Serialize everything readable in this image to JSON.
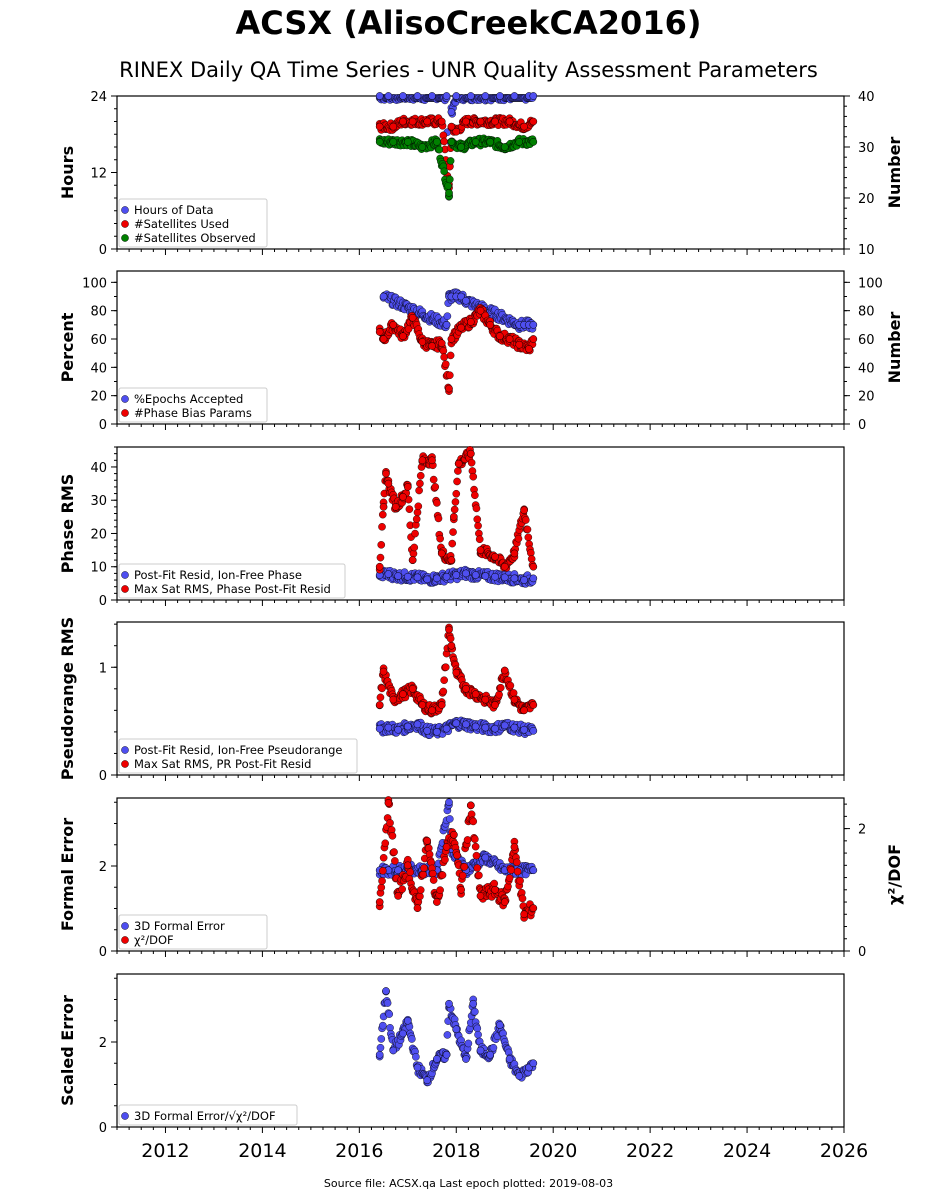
{
  "title": "ACSX (AlisoCreekCA2016)",
  "subtitle": "RINEX Daily QA Time Series - UNR Quality Assessment Parameters",
  "footer": "Source file: ACSX.qa Last epoch plotted: 2019-08-03",
  "colors": {
    "blue": "#4f4ff0",
    "red": "#ee0000",
    "green": "#008000",
    "darkred": "#5a0000",
    "edge": "#000000"
  },
  "chart_data": [
    {
      "type": "scatter",
      "ylabel": "Hours",
      "ylim": [
        0,
        24
      ],
      "yticks": [
        "0",
        "12",
        "24"
      ],
      "ylabel_right": "Number",
      "ylim_right": [
        10,
        40
      ],
      "yticks_right": [
        "10",
        "20",
        "30",
        "40"
      ],
      "xlim": [
        2011.0,
        2026.0
      ],
      "xticks": [
        "2012",
        "2014",
        "2016",
        "2018",
        "2020",
        "2022",
        "2024",
        "2026"
      ],
      "legend_position": "lower-left",
      "series": [
        {
          "name": "Hours of Data",
          "color": "#4f4ff0",
          "axis": "left",
          "x": [
            2016.42,
            2016.6,
            2016.9,
            2017.2,
            2017.5,
            2017.8,
            2017.85,
            2017.9,
            2018.0,
            2018.3,
            2018.6,
            2018.9,
            2019.2,
            2019.5,
            2019.59
          ],
          "y": [
            24,
            24,
            24,
            24,
            24,
            24,
            8.2,
            21.5,
            24,
            24,
            24,
            24,
            24,
            24,
            24
          ]
        },
        {
          "name": "#Satellites Used",
          "color": "#ee0000",
          "axis": "right",
          "x": [
            2016.42,
            2016.7,
            2016.9,
            2017.1,
            2017.4,
            2017.7,
            2017.85,
            2017.9,
            2018.0,
            2018.2,
            2018.5,
            2018.8,
            2019.1,
            2019.4,
            2019.59
          ],
          "y": [
            34,
            34,
            35,
            35,
            35,
            35,
            22,
            34,
            33,
            35,
            35,
            35,
            35,
            34,
            35
          ]
        },
        {
          "name": "#Satellites Observed",
          "color": "#008000",
          "axis": "right",
          "x": [
            2016.42,
            2016.7,
            2017.0,
            2017.3,
            2017.6,
            2017.85,
            2017.9,
            2018.1,
            2018.4,
            2018.7,
            2019.0,
            2019.3,
            2019.59
          ],
          "y": [
            31,
            31,
            31,
            30,
            31,
            21,
            31,
            30,
            31,
            31,
            30,
            31,
            31
          ]
        }
      ]
    },
    {
      "type": "scatter",
      "ylabel": "Percent",
      "ylim": [
        0,
        108
      ],
      "yticks": [
        "0",
        "20",
        "40",
        "60",
        "80",
        "100"
      ],
      "ylabel_right": "Number",
      "ylim_right": [
        0,
        108
      ],
      "yticks_right": [
        "0",
        "20",
        "40",
        "60",
        "80",
        "100"
      ],
      "legend_position": "lower-left",
      "series": [
        {
          "name": "%Epochs Accepted",
          "color": "#4f4ff0",
          "axis": "left",
          "x": [
            2016.5,
            2017.8,
            2017.85,
            2017.9,
            2018.0,
            2018.1,
            2018.2,
            2019.3,
            2019.4,
            2019.5,
            2019.59
          ],
          "y": [
            90,
            70,
            90,
            90,
            90,
            90,
            87,
            70,
            70,
            70,
            70
          ]
        },
        {
          "name": "#Phase Bias Params",
          "color": "#ee0000",
          "axis": "right",
          "x": [
            2016.42,
            2016.5,
            2016.7,
            2016.9,
            2017.1,
            2017.3,
            2017.5,
            2017.7,
            2017.85,
            2017.9,
            2018.1,
            2018.3,
            2018.5,
            2018.7,
            2018.9,
            2019.1,
            2019.3,
            2019.5,
            2019.59
          ],
          "y": [
            65,
            60,
            70,
            62,
            75,
            58,
            55,
            57,
            25,
            60,
            68,
            72,
            80,
            70,
            62,
            60,
            56,
            53,
            60
          ]
        }
      ]
    },
    {
      "type": "scatter",
      "ylabel": "Phase RMS",
      "ylim": [
        0,
        46
      ],
      "yticks": [
        "0",
        "10",
        "20",
        "30",
        "40"
      ],
      "legend_position": "lower-left",
      "series": [
        {
          "name": "Post-Fit Resid, Ion-Free Phase",
          "color": "#4f4ff0",
          "x": [
            2016.42,
            2016.6,
            2016.8,
            2017.0,
            2017.2,
            2017.4,
            2017.6,
            2017.8,
            2018.0,
            2018.2,
            2018.4,
            2018.6,
            2018.8,
            2019.0,
            2019.2,
            2019.4,
            2019.59
          ],
          "y": [
            7.5,
            7.8,
            7.2,
            7.0,
            6.8,
            6.2,
            6.5,
            7.0,
            7.5,
            8.0,
            7.5,
            7.2,
            7.0,
            6.8,
            6.5,
            6.0,
            6.5
          ]
        },
        {
          "name": "Max Sat RMS, Phase Post-Fit Resid",
          "color": "#ee0000",
          "x": [
            2016.42,
            2016.5,
            2016.55,
            2016.6,
            2016.75,
            2016.9,
            2017.0,
            2017.1,
            2017.3,
            2017.5,
            2017.7,
            2017.9,
            2017.95,
            2018.05,
            2018.3,
            2018.5,
            2018.8,
            2019.0,
            2019.2,
            2019.4,
            2019.59
          ],
          "y": [
            10,
            28,
            38,
            35,
            28,
            31,
            34,
            12,
            42,
            42,
            14,
            12,
            25,
            41,
            44,
            15,
            13,
            10,
            14,
            27,
            10
          ]
        }
      ]
    },
    {
      "type": "scatter",
      "ylabel": "Pseudorange RMS",
      "ylim": [
        0,
        1.42
      ],
      "yticks": [
        "0",
        "1"
      ],
      "legend_position": "lower-left",
      "series": [
        {
          "name": "Post-Fit Resid, Ion-Free Pseudorange",
          "color": "#4f4ff0",
          "x": [
            2016.42,
            2016.6,
            2016.8,
            2017.0,
            2017.2,
            2017.4,
            2017.6,
            2017.8,
            2018.0,
            2018.2,
            2018.4,
            2018.6,
            2018.8,
            2019.0,
            2019.2,
            2019.4,
            2019.59
          ],
          "y": [
            0.43,
            0.44,
            0.42,
            0.45,
            0.47,
            0.41,
            0.4,
            0.43,
            0.48,
            0.47,
            0.45,
            0.44,
            0.43,
            0.46,
            0.44,
            0.42,
            0.41
          ]
        },
        {
          "name": "Max Sat RMS, PR Post-Fit Resid",
          "color": "#ee0000",
          "x": [
            2016.42,
            2016.5,
            2016.7,
            2016.9,
            2017.1,
            2017.3,
            2017.5,
            2017.7,
            2017.85,
            2017.9,
            2018.0,
            2018.2,
            2018.4,
            2018.6,
            2018.8,
            2019.0,
            2019.2,
            2019.4,
            2019.59
          ],
          "y": [
            0.65,
            0.96,
            0.7,
            0.75,
            0.8,
            0.65,
            0.6,
            0.65,
            1.35,
            1.2,
            0.95,
            0.8,
            0.75,
            0.7,
            0.65,
            0.97,
            0.7,
            0.6,
            0.65
          ]
        }
      ]
    },
    {
      "type": "scatter",
      "ylabel": "Formal Error",
      "ylim": [
        0,
        3.6
      ],
      "yticks": [
        "0",
        "2"
      ],
      "ylabel_right": "χ²/DOF",
      "ylim_right": [
        0,
        2.5
      ],
      "yticks_right": [
        "0",
        "2"
      ],
      "legend_position": "lower-left",
      "series": [
        {
          "name": "3D Formal Error",
          "color": "#4f4ff0",
          "axis": "left",
          "x": [
            2016.42,
            2016.6,
            2016.8,
            2017.0,
            2017.3,
            2017.6,
            2017.85,
            2017.9,
            2018.2,
            2018.6,
            2019.0,
            2019.3,
            2019.59
          ],
          "y": [
            1.9,
            1.9,
            1.9,
            1.95,
            1.9,
            1.9,
            3.5,
            2.4,
            1.9,
            2.2,
            1.9,
            1.9,
            1.9
          ]
        },
        {
          "name": "χ²/DOF",
          "color": "#ee0000",
          "axis": "right",
          "x": [
            2016.42,
            2016.6,
            2016.8,
            2017.0,
            2017.2,
            2017.4,
            2017.6,
            2017.8,
            2017.95,
            2018.1,
            2018.3,
            2018.5,
            2018.8,
            2019.0,
            2019.2,
            2019.4,
            2019.59
          ],
          "y": [
            0.8,
            2.42,
            0.9,
            1.4,
            0.7,
            1.8,
            0.8,
            1.7,
            1.9,
            1.0,
            2.38,
            0.9,
            1.0,
            0.8,
            1.7,
            0.6,
            0.7
          ]
        }
      ]
    },
    {
      "type": "scatter",
      "ylabel": "Scaled Error",
      "ylim": [
        0,
        3.6
      ],
      "yticks": [
        "0",
        "2"
      ],
      "legend_position": "lower-left",
      "series": [
        {
          "name": "3D Formal Error/√χ²/DOF",
          "color": "#4f4ff0",
          "x": [
            2016.42,
            2016.55,
            2016.7,
            2016.9,
            2017.0,
            2017.2,
            2017.4,
            2017.6,
            2017.8,
            2017.85,
            2018.0,
            2018.2,
            2018.35,
            2018.5,
            2018.7,
            2018.9,
            2019.1,
            2019.3,
            2019.5,
            2019.59
          ],
          "y": [
            1.7,
            3.2,
            1.8,
            2.2,
            2.5,
            1.4,
            1.1,
            1.6,
            1.7,
            2.9,
            2.3,
            1.6,
            2.9,
            1.8,
            1.7,
            2.4,
            1.6,
            1.2,
            1.4,
            1.5
          ]
        }
      ]
    }
  ]
}
